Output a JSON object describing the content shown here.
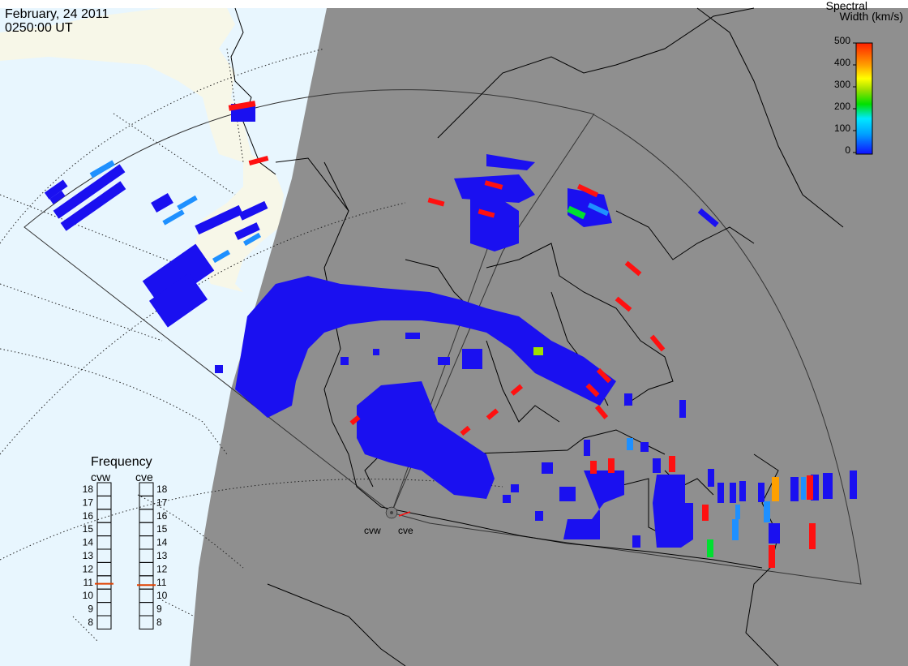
{
  "header": {
    "date": "February, 24 2011",
    "time": "0250:00 UT"
  },
  "colorbar": {
    "title_line1": "Spectral",
    "title_line2": "Width (km/s)",
    "ticks": [
      "500",
      "400",
      "300",
      "200",
      "100",
      "0"
    ],
    "range": [
      0,
      500
    ],
    "colors": [
      "#1010ff",
      "#00a0ff",
      "#00e8ff",
      "#00e000",
      "#a0e000",
      "#ffff00",
      "#ffa000",
      "#ff2000"
    ]
  },
  "radars": {
    "west": {
      "code": "cvw"
    },
    "east": {
      "code": "cve"
    }
  },
  "frequency": {
    "title": "Frequency",
    "col_west": "cvw",
    "col_east": "cve",
    "scale": [
      "18",
      "17",
      "16",
      "15",
      "14",
      "13",
      "12",
      "11",
      "10",
      "9",
      "8"
    ],
    "range_mhz": [
      8,
      18
    ],
    "cvw_mhz": 10.9,
    "cve_mhz": 10.8
  },
  "colors": {
    "day_ocean": "#e8f6fe",
    "day_land": "#f7f7e8",
    "night": "#8f8f8f",
    "scatter_main": "#1a10f0",
    "scatter_red": "#ff1010",
    "scatter_light_blue": "#1e90ff",
    "scatter_green": "#00e030",
    "scatter_orange": "#ffa000",
    "freq_marker": "#e04000"
  }
}
